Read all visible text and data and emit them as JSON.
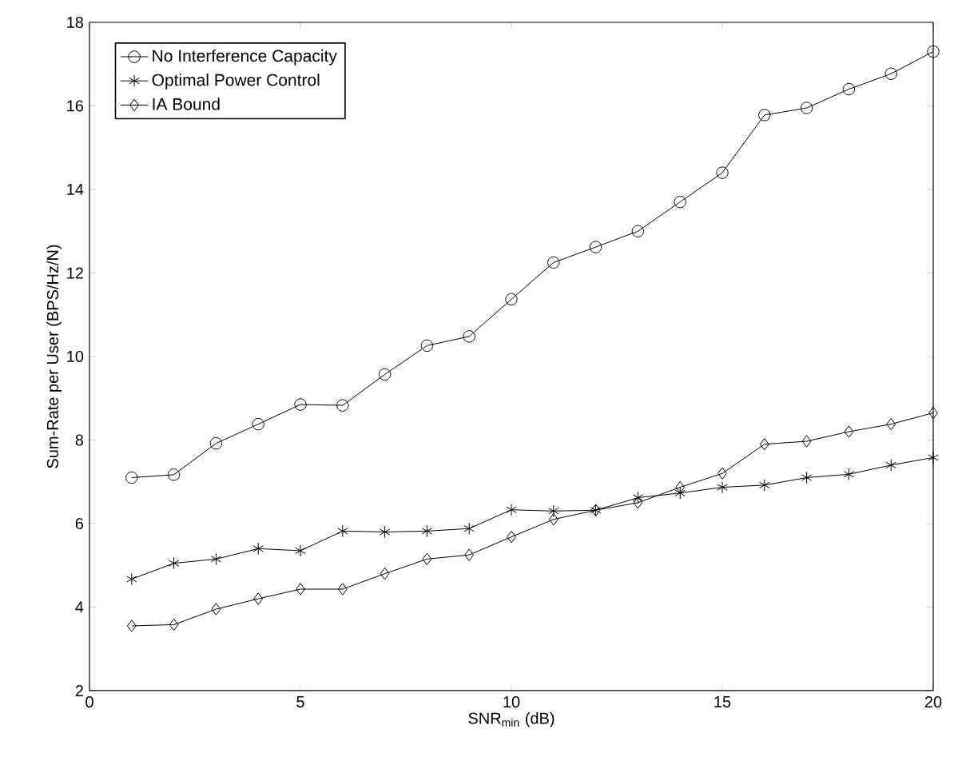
{
  "chart_data": {
    "type": "line",
    "xlabel": "SNR$_{min}$ (dB)",
    "ylabel": "Sum-Rate per User (BPS/Hz/N)",
    "x": [
      1,
      2,
      3,
      4,
      5,
      6,
      7,
      8,
      9,
      10,
      11,
      12,
      13,
      14,
      15,
      16,
      17,
      18,
      19,
      20
    ],
    "xlim": [
      0,
      20
    ],
    "xticks": [
      0,
      5,
      10,
      15,
      20
    ],
    "ylim": [
      2,
      18
    ],
    "yticks": [
      2,
      4,
      6,
      8,
      10,
      12,
      14,
      16,
      18
    ],
    "legend": "top left",
    "grid": false,
    "line_style": "solid",
    "series": [
      {
        "name": "No Interference Capacity",
        "color": "#000000",
        "marker": "circle",
        "values": [
          7.1,
          7.17,
          7.92,
          8.38,
          8.85,
          8.83,
          9.57,
          10.26,
          10.48,
          11.37,
          12.25,
          12.62,
          13.0,
          13.7,
          14.4,
          15.78,
          15.95,
          16.4,
          16.77,
          17.3
        ]
      },
      {
        "name": "Optimal Power Control",
        "color": "#000000",
        "marker": "cross",
        "values": [
          4.67,
          5.05,
          5.15,
          5.4,
          5.35,
          5.82,
          5.8,
          5.82,
          5.88,
          6.33,
          6.3,
          6.32,
          6.62,
          6.73,
          6.87,
          6.92,
          7.1,
          7.18,
          7.4,
          7.58
        ]
      },
      {
        "name": "IA Bound",
        "color": "#000000",
        "marker": "diamond",
        "values": [
          3.55,
          3.58,
          3.95,
          4.2,
          4.43,
          4.43,
          4.8,
          5.15,
          5.25,
          5.68,
          6.1,
          6.32,
          6.5,
          6.87,
          7.2,
          7.9,
          7.97,
          8.2,
          8.38,
          8.65
        ]
      }
    ]
  }
}
